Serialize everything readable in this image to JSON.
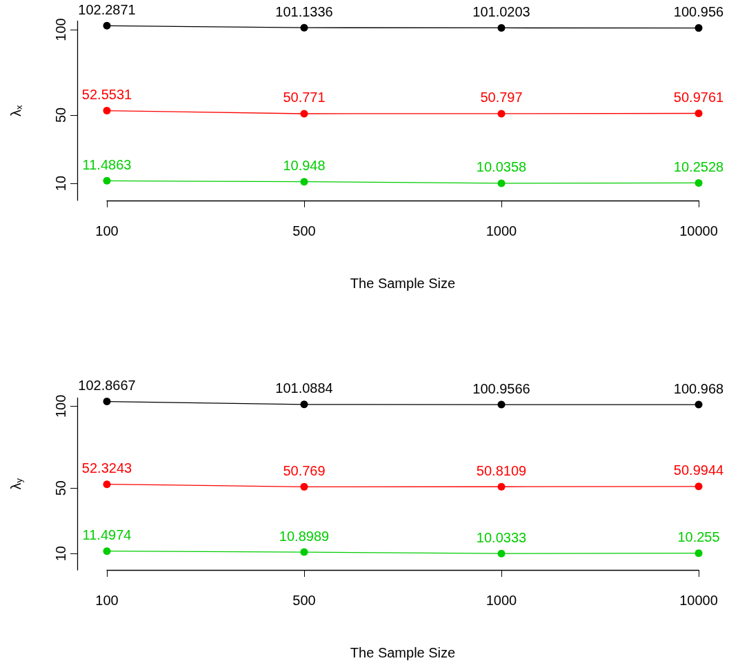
{
  "chart_data": [
    {
      "type": "line",
      "xlabel": "The Sample Size",
      "ylabel": "λ$_{x}$",
      "categories": [
        "100",
        "500",
        "1000",
        "10000"
      ],
      "ylim": [
        0,
        105
      ],
      "yticks": [
        10,
        50,
        100
      ],
      "marker": "circle",
      "line_style": "solid",
      "data_labels": true,
      "series": [
        {
          "color": "#000000",
          "values": [
            102.2871,
            101.1336,
            101.0203,
            100.956
          ]
        },
        {
          "color": "#ff0000",
          "values": [
            52.5531,
            50.771,
            50.797,
            50.9761
          ]
        },
        {
          "color": "#00cd00",
          "values": [
            11.4863,
            10.948,
            10.0358,
            10.2528
          ]
        }
      ]
    },
    {
      "type": "line",
      "xlabel": "The Sample Size",
      "ylabel": "λ$_{y}$",
      "categories": [
        "100",
        "500",
        "1000",
        "10000"
      ],
      "ylim": [
        0,
        105
      ],
      "yticks": [
        10,
        50,
        100
      ],
      "marker": "circle",
      "line_style": "solid",
      "data_labels": true,
      "series": [
        {
          "color": "#000000",
          "values": [
            102.8667,
            101.0884,
            100.9566,
            100.968
          ]
        },
        {
          "color": "#ff0000",
          "values": [
            52.3243,
            50.769,
            50.8109,
            50.9944
          ]
        },
        {
          "color": "#00cd00",
          "values": [
            11.4974,
            10.8989,
            10.0333,
            10.255
          ]
        }
      ]
    }
  ]
}
